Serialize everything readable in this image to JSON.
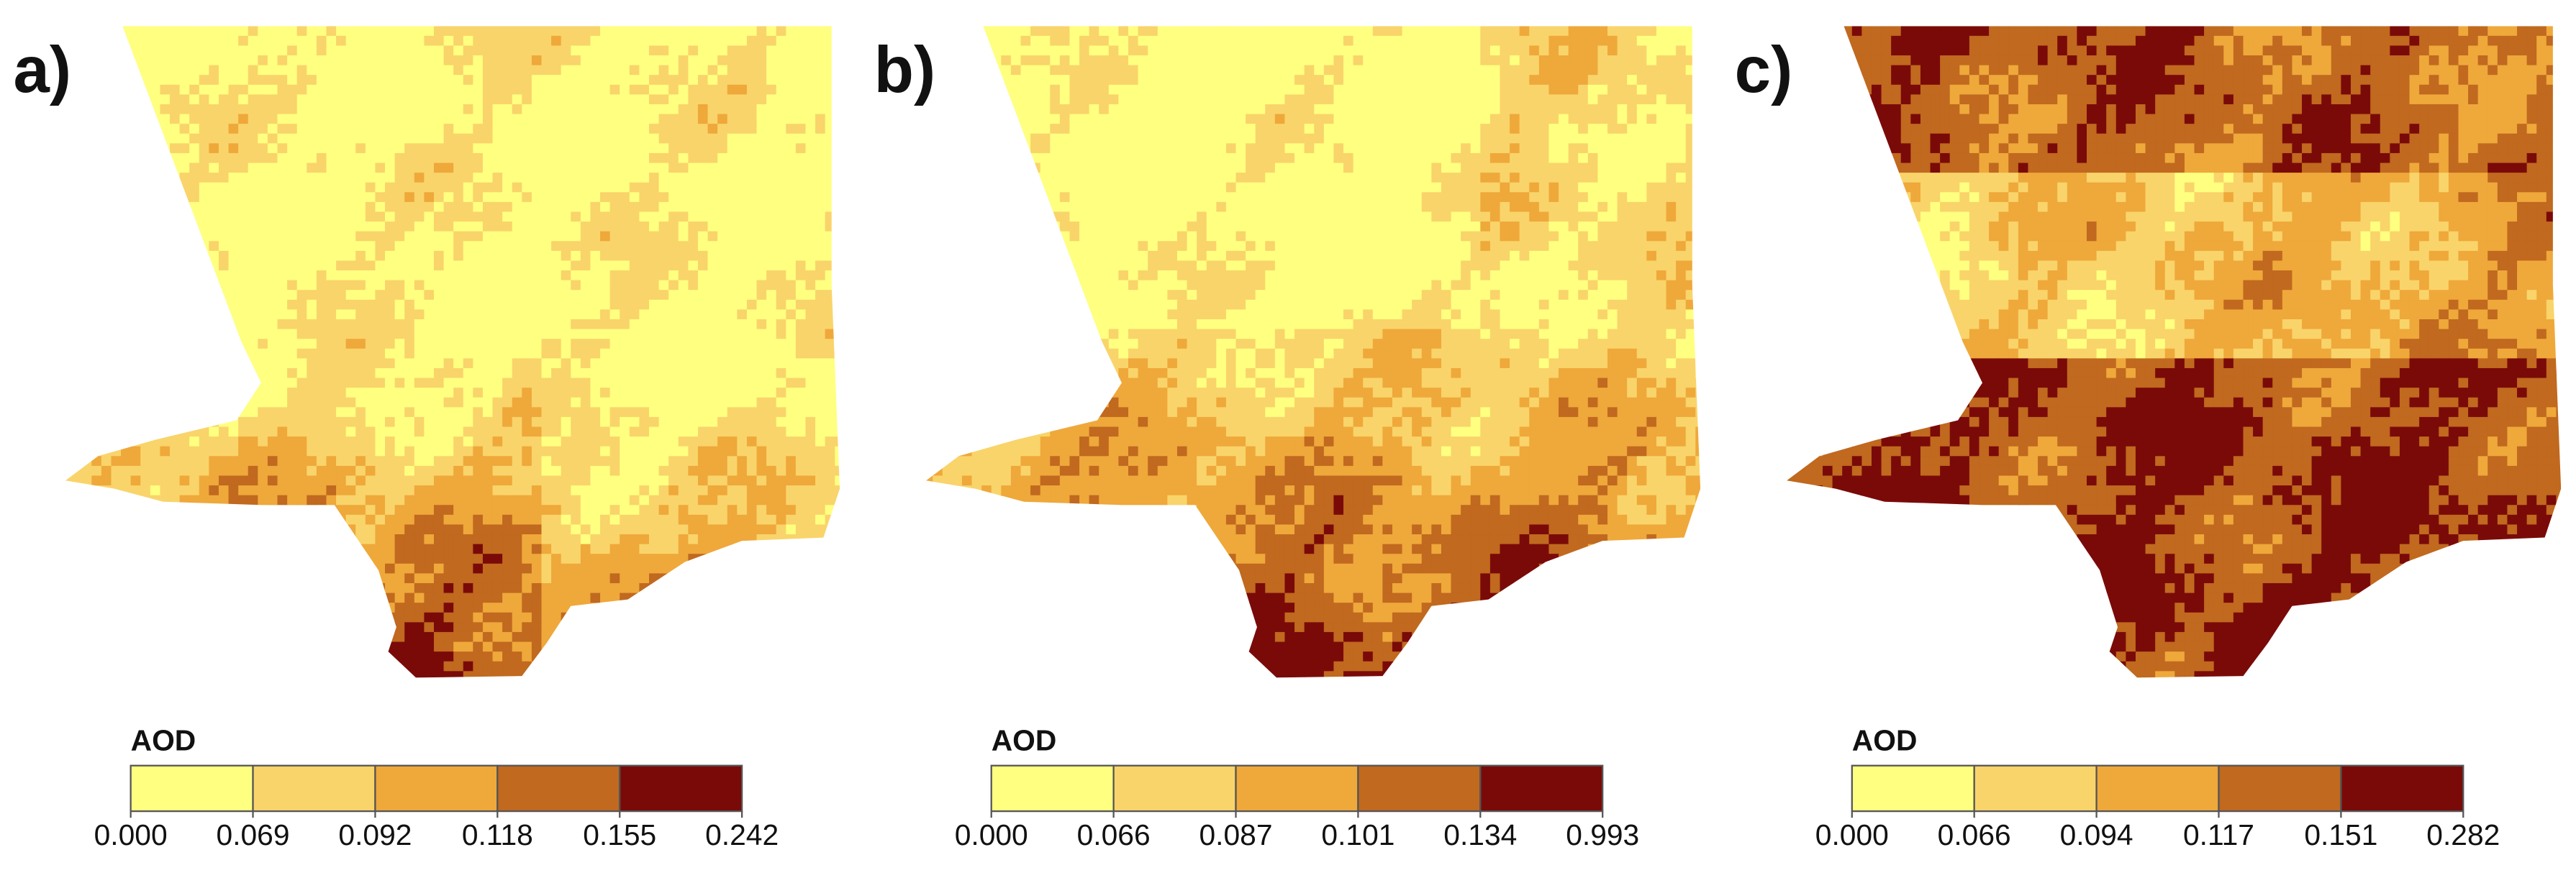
{
  "panels": [
    {
      "label": "a)",
      "legend": {
        "title": "AOD",
        "colors": [
          "#ffff80",
          "#f9d46a",
          "#efa83a",
          "#c0691f",
          "#7a0a08"
        ],
        "ticks": [
          {
            "value": 0,
            "label": "0.000"
          },
          0.069,
          0.092,
          0.118,
          0.155,
          0.242
        ]
      }
    },
    {
      "label": "b)",
      "legend": {
        "title": "AOD",
        "colors": [
          "#ffff80",
          "#f9d46a",
          "#efa83a",
          "#c0691f",
          "#7a0a08"
        ],
        "ticks": [
          {
            "value": 0,
            "label": "0.000"
          },
          0.066,
          0.087,
          0.101,
          0.134,
          0.993
        ]
      }
    },
    {
      "label": "c)",
      "legend": {
        "title": "AOD",
        "colors": [
          "#ffff80",
          "#f9d46a",
          "#efa83a",
          "#c0691f",
          "#7a0a08"
        ],
        "ticks": [
          {
            "value": 0,
            "label": "0.000"
          },
          0.066,
          0.094,
          0.117,
          0.151,
          0.282
        ]
      }
    }
  ]
}
